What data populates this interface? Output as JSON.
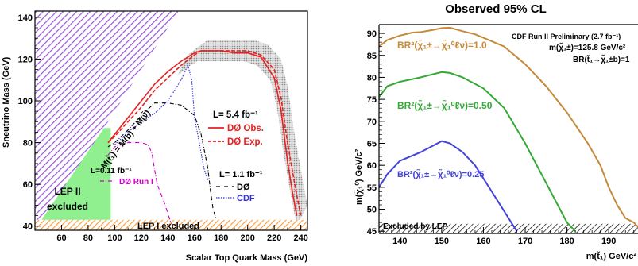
{
  "chart_data": [
    {
      "type": "line",
      "xlabel": "Scalar Top Quark Mass (GeV)",
      "ylabel": "Sneutrino Mass (GeV)",
      "xlim": [
        40,
        245
      ],
      "ylim": [
        38,
        143
      ],
      "xticks": [
        "60",
        "80",
        "100",
        "120",
        "140",
        "160",
        "180",
        "200",
        "220",
        "240"
      ],
      "yticks": [
        "40",
        "60",
        "80",
        "100",
        "120",
        "140"
      ],
      "kinematic_label": "M(t̃₁) = M(b) + M(ν̃)",
      "lep2_label": [
        "LEP II",
        "excluded"
      ],
      "lep1_label": "LEP I excluded",
      "legend_54": {
        "title": "L= 5.4 fb⁻¹",
        "obs": "DØ Obs.",
        "exp": "DØ Exp."
      },
      "legend_11": {
        "title": "L= 1.1 fb⁻¹",
        "d0": "DØ",
        "cdf": "CDF"
      },
      "legend_011": {
        "title": "L=0.11 fb⁻¹",
        "run1": "DØ Run I"
      },
      "colors": {
        "obs": "#e82020",
        "exp": "#e82020",
        "band": "#b0b0b0",
        "d0_11": "#000000",
        "cdf": "#3030e0",
        "run1": "#cc00cc",
        "lep2": "#90f090",
        "lep1": "#ff9933",
        "kin": "#9955dd"
      },
      "series": [
        {
          "name": "DØ Obs.",
          "x": [
            95,
            100,
            110,
            120,
            130,
            140,
            150,
            160,
            165,
            170,
            180,
            190,
            200,
            210,
            220,
            225,
            230,
            234,
            237
          ],
          "y": [
            80,
            84,
            92,
            100,
            108,
            114,
            119,
            123,
            124,
            124,
            124,
            123,
            123,
            121,
            111,
            96,
            71,
            55,
            45
          ]
        },
        {
          "name": "DØ Exp.",
          "x": [
            95,
            100,
            110,
            120,
            130,
            140,
            150,
            160,
            165,
            170,
            180,
            190,
            200,
            210,
            220,
            225,
            230,
            236,
            240
          ],
          "y": [
            80,
            83,
            90,
            97,
            105,
            111,
            117,
            122,
            124,
            124,
            124,
            124,
            124,
            122,
            115,
            102,
            80,
            58,
            45
          ]
        },
        {
          "name": "DØ",
          "x": [
            95,
            100,
            110,
            120,
            130,
            140,
            150,
            160,
            165,
            170,
            172,
            174,
            176
          ],
          "y": [
            78,
            80,
            86,
            93,
            99,
            99,
            98,
            93,
            84,
            68,
            57,
            48,
            44
          ]
        },
        {
          "name": "CDF",
          "x": [
            100,
            110,
            120,
            130,
            140,
            145,
            150,
            155,
            158,
            160,
            163,
            165,
            167,
            170
          ],
          "y": [
            79,
            85,
            90,
            94,
            100,
            105,
            110,
            117,
            110,
            92,
            82,
            75,
            68,
            62
          ]
        },
        {
          "name": "DØ Run I",
          "x": [
            95,
            100,
            110,
            120,
            125,
            128,
            130,
            132,
            135,
            138,
            140,
            141,
            142,
            143
          ],
          "y": [
            74,
            78,
            80,
            80,
            79,
            75,
            67,
            60,
            55,
            50,
            46,
            44,
            42,
            41
          ]
        }
      ]
    },
    {
      "type": "line",
      "title": "Observed 95% CL",
      "xlabel": "m(t̃₁) GeV/c²",
      "ylabel": "m(χ̃₁⁰) GeV/c²",
      "xlim": [
        135,
        197
      ],
      "ylim": [
        44.5,
        92
      ],
      "xticks": [
        "140",
        "150",
        "160",
        "170",
        "180",
        "190"
      ],
      "yticks": [
        "45",
        "50",
        "55",
        "60",
        "65",
        "70",
        "75",
        "80",
        "85",
        "90"
      ],
      "info_lines": [
        "CDF Run II Preliminary (2.7 fb⁻¹)",
        "m(χ̃₁±)=125.8 GeV/c²",
        "BR(t̃₁→χ̃₁±b)=1"
      ],
      "lep_label": "Excluded by LEP",
      "colors": {
        "br100": "#c58a3a",
        "br050": "#33aa33",
        "br025": "#4444dd"
      },
      "series": [
        {
          "name": "BR²(χ̃₁±→χ̃₁⁰ℓν)=1.0",
          "x": [
            135,
            137,
            140,
            143,
            145,
            148,
            150,
            152,
            155,
            158,
            160,
            165,
            170,
            175,
            180,
            185,
            188,
            190,
            192,
            194,
            196,
            197
          ],
          "y": [
            87,
            88.5,
            89.5,
            90.2,
            90.3,
            90.8,
            91.2,
            91.3,
            90.5,
            89.8,
            89,
            87,
            83,
            78,
            72,
            65,
            60,
            55,
            51,
            48,
            47,
            46
          ]
        },
        {
          "name": "BR²(χ̃₁±→χ̃₁⁰ℓν)=0.50",
          "x": [
            135,
            137,
            140,
            145,
            150,
            152,
            155,
            160,
            165,
            170,
            175,
            180,
            181,
            182
          ],
          "y": [
            75.5,
            78,
            79,
            80,
            81.2,
            81,
            80,
            77.5,
            73,
            65,
            56,
            47,
            46,
            45
          ]
        },
        {
          "name": "BR²(χ̃₁±→χ̃₁⁰ℓν)=0.25",
          "x": [
            135,
            137,
            140,
            145,
            150,
            152,
            155,
            158,
            160,
            162,
            164,
            166,
            168
          ],
          "y": [
            55,
            58,
            61,
            63,
            65.5,
            65,
            63,
            60,
            57,
            54,
            51,
            48,
            45
          ]
        }
      ]
    }
  ]
}
